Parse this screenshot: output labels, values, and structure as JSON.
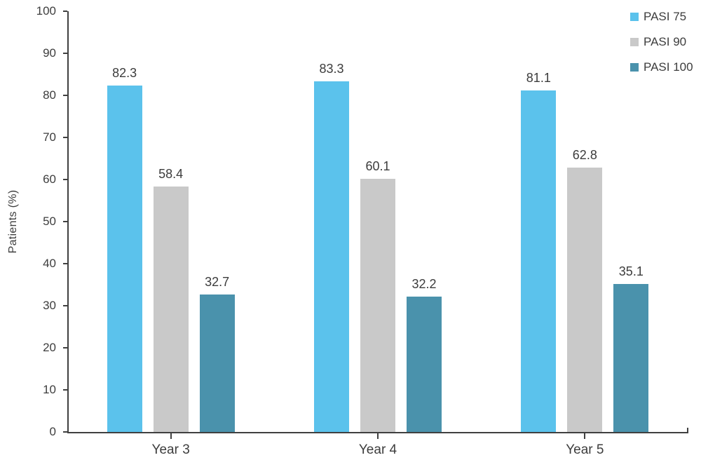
{
  "figure": {
    "background": "#ffffff",
    "text_color": "#3d3d3d",
    "axis_color": "#404040"
  },
  "chart_data": {
    "type": "bar",
    "title": "",
    "categories": [
      "Year 3",
      "Year 4",
      "Year 5"
    ],
    "series": [
      {
        "name": "PASI 75",
        "color": "#5BC2EC",
        "values": [
          82.3,
          83.3,
          81.1
        ]
      },
      {
        "name": "PASI 90",
        "color": "#C9C9C9",
        "values": [
          58.4,
          60.1,
          62.8
        ]
      },
      {
        "name": "PASI 100",
        "color": "#4A92AC",
        "values": [
          32.7,
          32.2,
          35.1
        ]
      }
    ],
    "xlabel": "",
    "ylabel": "Patients (%)",
    "ylim": [
      0,
      100
    ],
    "yticks": [
      0,
      10,
      20,
      30,
      40,
      50,
      60,
      70,
      80,
      90,
      100
    ],
    "grid": false,
    "legend_position": "top-right",
    "value_labels": true
  }
}
